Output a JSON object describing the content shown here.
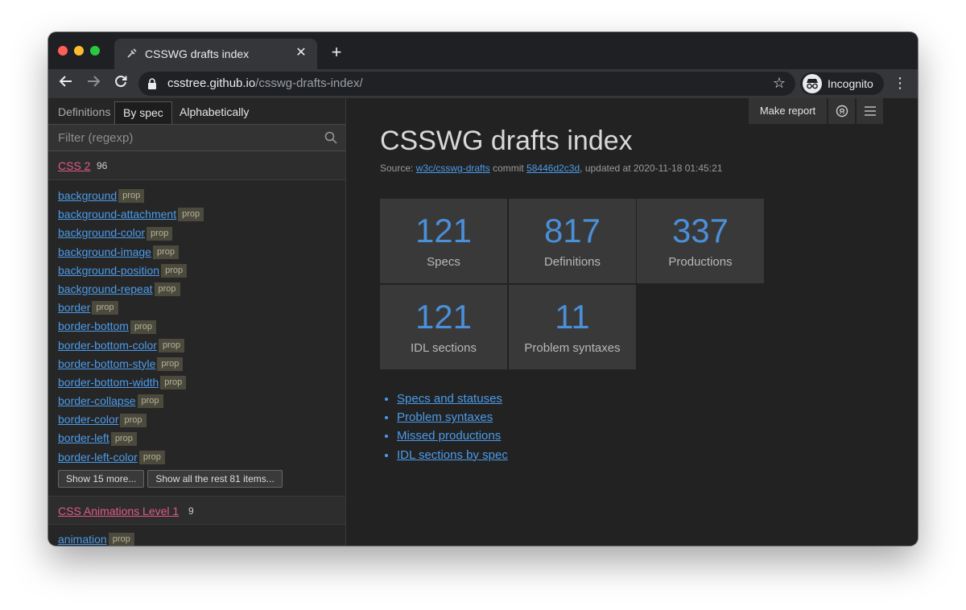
{
  "browser": {
    "tab_title": "CSSWG drafts index",
    "url_host": "csstree.github.io",
    "url_path": "/csswg-drafts-index/",
    "profile_label": "Incognito"
  },
  "sidebar": {
    "tabs": [
      {
        "label": "Definitions"
      },
      {
        "label": "By spec"
      },
      {
        "label": "Alphabetically"
      }
    ],
    "active_tab": "By spec",
    "filter_placeholder": "Filter (regexp)",
    "groups": [
      {
        "title": "CSS 2",
        "count": "96",
        "items": [
          {
            "name": "background",
            "tag": "prop"
          },
          {
            "name": "background-attachment",
            "tag": "prop"
          },
          {
            "name": "background-color",
            "tag": "prop"
          },
          {
            "name": "background-image",
            "tag": "prop"
          },
          {
            "name": "background-position",
            "tag": "prop"
          },
          {
            "name": "background-repeat",
            "tag": "prop"
          },
          {
            "name": "border",
            "tag": "prop"
          },
          {
            "name": "border-bottom",
            "tag": "prop"
          },
          {
            "name": "border-bottom-color",
            "tag": "prop"
          },
          {
            "name": "border-bottom-style",
            "tag": "prop"
          },
          {
            "name": "border-bottom-width",
            "tag": "prop"
          },
          {
            "name": "border-collapse",
            "tag": "prop"
          },
          {
            "name": "border-color",
            "tag": "prop"
          },
          {
            "name": "border-left",
            "tag": "prop"
          },
          {
            "name": "border-left-color",
            "tag": "prop"
          }
        ],
        "show_more_label": "Show 15 more...",
        "show_all_label": "Show all the rest 81 items..."
      },
      {
        "title": "CSS Animations Level 1",
        "count": "9",
        "items": [
          {
            "name": "animation",
            "tag": "prop"
          }
        ]
      }
    ]
  },
  "main": {
    "toolbar": {
      "make_report_label": "Make report",
      "github_icon": "github-icon",
      "menu_icon": "hamburger-icon"
    },
    "title": "CSSWG drafts index",
    "source": {
      "prefix": "Source: ",
      "repo_link": "w3c/csswg-drafts",
      "commit_prefix": " commit ",
      "commit_link": "58446d2c3d",
      "updated_text": ", updated at 2020-11-18 01:45:21"
    },
    "stats": [
      {
        "value": "121",
        "label": "Specs"
      },
      {
        "value": "817",
        "label": "Definitions"
      },
      {
        "value": "337",
        "label": "Productions"
      },
      {
        "value": "121",
        "label": "IDL sections"
      },
      {
        "value": "11",
        "label": "Problem syntaxes"
      }
    ],
    "links": [
      {
        "label": "Specs and statuses"
      },
      {
        "label": "Problem syntaxes"
      },
      {
        "label": "Missed productions"
      },
      {
        "label": "IDL sections by spec"
      }
    ]
  },
  "colors": {
    "link": "#4b9bea",
    "spec_link": "#e05a8a",
    "stat_value": "#4a8fd8",
    "badge_bg": "#4b4a3c"
  }
}
